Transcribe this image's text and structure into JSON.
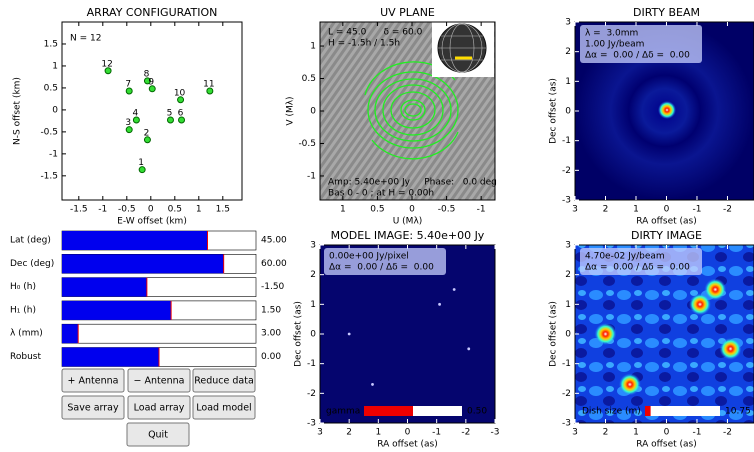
{
  "array_configuration": {
    "title": "ARRAY CONFIGURATION",
    "note": "N = 12",
    "xlabel": "E-W offset (km)",
    "ylabel": "N-S offset (km)",
    "xlim": [
      -1.85,
      1.9
    ],
    "ylim": [
      -2.05,
      2.0
    ],
    "xticks": [
      -1.5,
      -1.0,
      -0.5,
      0.0,
      0.5,
      1.0,
      1.5
    ],
    "yticks": [
      -1.5,
      -1.0,
      -0.5,
      0.0,
      0.5,
      1.0,
      1.5
    ],
    "antennas": {
      "labels": [
        "1",
        "2",
        "3",
        "4",
        "5",
        "6",
        "7",
        "8",
        "9",
        "10",
        "11",
        "12"
      ],
      "x": [
        -0.18,
        -0.07,
        -0.45,
        -0.3,
        0.41,
        0.64,
        -0.45,
        -0.07,
        0.03,
        0.62,
        1.23,
        -0.89
      ],
      "y": [
        -1.36,
        -0.68,
        -0.45,
        -0.23,
        -0.23,
        -0.23,
        0.43,
        0.66,
        0.48,
        0.23,
        0.43,
        0.89
      ]
    },
    "color": "#33dd33"
  },
  "uv_plane": {
    "title": "UV PLANE",
    "xlabel": "U (Mλ)",
    "ylabel": "V (Mλ)",
    "xlim": [
      1.33,
      -1.2
    ],
    "ylim": [
      -1.37,
      1.37
    ],
    "xticks": [
      1.0,
      0.5,
      0.0,
      -0.5,
      -1.0
    ],
    "yticks": [
      -1.0,
      -0.5,
      0.0,
      0.5,
      1.0
    ],
    "info": [
      "L = 45.0      δ = 60.0",
      "H = -1.5h / 1.5h"
    ],
    "footer": [
      "Amp: 5.40e+00 Jy     Phase:   0.0 deg",
      "Bas 0 - 0 ; at H = 0.00h"
    ]
  },
  "dirty_beam": {
    "title": "DIRTY BEAM",
    "xlabel": "RA offset (as)",
    "ylabel": "Dec offset (as)",
    "xlim": [
      3,
      -2.87
    ],
    "ylim": [
      -3,
      3
    ],
    "xticks": [
      3,
      2,
      1,
      0,
      -1,
      -2
    ],
    "yticks": [
      -3,
      -2,
      -1,
      0,
      1,
      2,
      3
    ],
    "info": [
      "λ =  3.0mm",
      "1.00 Jy/beam",
      "Δα =  0.00 / Δδ =  0.00"
    ]
  },
  "model_image": {
    "title": "MODEL IMAGE: 5.40e+00 Jy",
    "xlabel": "RA offset (as)",
    "ylabel": "Dec offset (as)",
    "xlim": [
      3,
      -3
    ],
    "ylim": [
      -3,
      3
    ],
    "xticks": [
      3,
      2,
      1,
      0,
      -1,
      -2,
      -3
    ],
    "yticks": [
      -3,
      -2,
      -1,
      0,
      1,
      2,
      3
    ],
    "info": [
      "0.00e+00 Jy/pixel",
      "Δα =  0.00 / Δδ =  0.00"
    ],
    "sources": {
      "x": [
        2.0,
        -1.1,
        -1.6,
        -2.1,
        1.2
      ],
      "y": [
        0.0,
        1.0,
        1.5,
        -0.5,
        -1.7
      ]
    },
    "slider": {
      "label": "gamma",
      "value": 0.5,
      "value_label": "0.50",
      "min": 0,
      "max": 1
    }
  },
  "dirty_image": {
    "title": "DIRTY IMAGE",
    "xlabel": "RA offset (as)",
    "ylabel": "Dec offset (as)",
    "xlim": [
      3,
      -2.87
    ],
    "ylim": [
      -3,
      3
    ],
    "xticks": [
      3,
      2,
      1,
      0,
      -1,
      -2
    ],
    "yticks": [
      -3,
      -2,
      -1,
      0,
      1,
      2,
      3
    ],
    "info": [
      "4.70e-02 Jy/beam",
      "Δα =  0.00 / Δδ =  0.00"
    ],
    "slider": {
      "label": "Dish size (m)",
      "value": 10.75,
      "value_label": "10.75",
      "min": 10,
      "max": 20
    }
  },
  "sliders": [
    {
      "label": "Lat (deg)",
      "value": 45,
      "value_label": "45.00",
      "min": -90,
      "max": 90
    },
    {
      "label": "Dec (deg)",
      "value": 60,
      "value_label": "60.00",
      "min": -90,
      "max": 90
    },
    {
      "label": "H₀ (h)",
      "value": -1.5,
      "value_label": "-1.50",
      "min": -12,
      "max": 12
    },
    {
      "label": "H₁ (h)",
      "value": 1.5,
      "value_label": "1.50",
      "min": -12,
      "max": 12
    },
    {
      "label": "λ (mm)",
      "value": 3,
      "value_label": "3.00",
      "min": 1,
      "max": 25
    },
    {
      "label": "Robust",
      "value": 0,
      "value_label": "0.00",
      "min": -2,
      "max": 2
    }
  ],
  "buttons": [
    "+ Antenna",
    "− Antenna",
    "Reduce data",
    "Save array",
    "Load array",
    "Load model",
    "Quit"
  ]
}
